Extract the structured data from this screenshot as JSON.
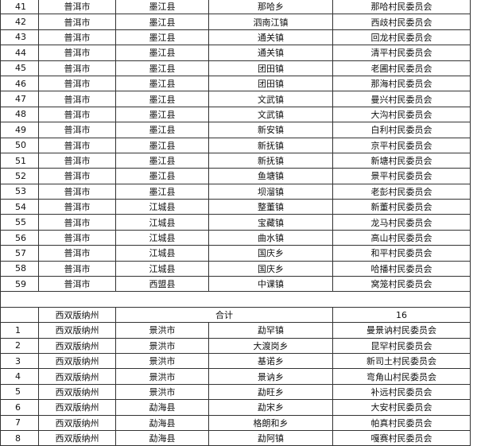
{
  "table": {
    "rows": [
      [
        "41",
        "普洱市",
        "墨江县",
        "那哈乡",
        "那哈村民委员会"
      ],
      [
        "42",
        "普洱市",
        "墨江县",
        "泗南江镇",
        "西歧村民委员会"
      ],
      [
        "43",
        "普洱市",
        "墨江县",
        "通关镇",
        "回龙村民委员会"
      ],
      [
        "44",
        "普洱市",
        "墨江县",
        "通关镇",
        "清平村民委员会"
      ],
      [
        "45",
        "普洱市",
        "墨江县",
        "团田镇",
        "老圃村民委员会"
      ],
      [
        "46",
        "普洱市",
        "墨江县",
        "团田镇",
        "那海村民委员会"
      ],
      [
        "47",
        "普洱市",
        "墨江县",
        "文武镇",
        "曼兴村民委员会"
      ],
      [
        "48",
        "普洱市",
        "墨江县",
        "文武镇",
        "大沟村民委员会"
      ],
      [
        "49",
        "普洱市",
        "墨江县",
        "新安镇",
        "白利村民委员会"
      ],
      [
        "50",
        "普洱市",
        "墨江县",
        "新抚镇",
        "京平村民委员会"
      ],
      [
        "51",
        "普洱市",
        "墨江县",
        "新抚镇",
        "新塘村民委员会"
      ],
      [
        "52",
        "普洱市",
        "墨江县",
        "鱼塘镇",
        "景平村民委员会"
      ],
      [
        "53",
        "普洱市",
        "墨江县",
        "坝溜镇",
        "老彭村民委员会"
      ],
      [
        "54",
        "普洱市",
        "江城县",
        "整董镇",
        "新董村民委员会"
      ],
      [
        "55",
        "普洱市",
        "江城县",
        "宝藏镇",
        "龙马村民委员会"
      ],
      [
        "56",
        "普洱市",
        "江城县",
        "曲水镇",
        "高山村民委员会"
      ],
      [
        "57",
        "普洱市",
        "江城县",
        "国庆乡",
        "和平村民委员会"
      ],
      [
        "58",
        "普洱市",
        "江城县",
        "国庆乡",
        "哈播村民委员会"
      ],
      [
        "59",
        "普洱市",
        "西盟县",
        "中课镇",
        "窝笼村民委员会"
      ]
    ],
    "section": {
      "region": "西双版纳州",
      "total_label": "合计",
      "total": "16"
    },
    "rows2": [
      [
        "1",
        "西双版纳州",
        "景洪市",
        "勐罕镇",
        "曼景讷村民委员会"
      ],
      [
        "2",
        "西双版纳州",
        "景洪市",
        "大渡岗乡",
        "昆罕村民委员会"
      ],
      [
        "3",
        "西双版纳州",
        "景洪市",
        "基诺乡",
        "新司土村民委员会"
      ],
      [
        "4",
        "西双版纳州",
        "景洪市",
        "景讷乡",
        "弯角山村民委员会"
      ],
      [
        "5",
        "西双版纳州",
        "景洪市",
        "勐旺乡",
        "补远村民委员会"
      ],
      [
        "6",
        "西双版纳州",
        "勐海县",
        "勐宋乡",
        "大安村民委员会"
      ],
      [
        "7",
        "西双版纳州",
        "勐海县",
        "格朗和乡",
        "帕真村民委员会"
      ],
      [
        "8",
        "西双版纳州",
        "勐海县",
        "勐阿镇",
        "嘎赛村民委员会"
      ]
    ]
  }
}
